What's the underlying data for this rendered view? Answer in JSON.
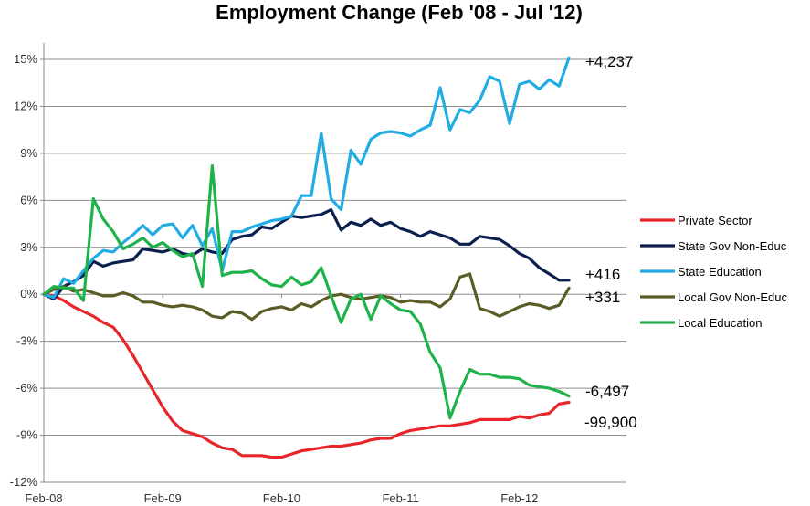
{
  "chart_data": {
    "type": "line",
    "title": "Employment Change (Feb '08 - Jul '12)",
    "xlabel": "",
    "ylabel": "",
    "y_ticks": [
      -12,
      -9,
      -6,
      -3,
      0,
      3,
      6,
      9,
      12,
      15
    ],
    "y_tick_labels": [
      "-12%",
      "-9%",
      "-6%",
      "-3%",
      "0%",
      "3%",
      "6%",
      "9%",
      "12%",
      "15%"
    ],
    "ylim": [
      -12,
      16
    ],
    "x_ticks": [
      "Feb-08",
      "Feb-09",
      "Feb-10",
      "Feb-11",
      "Feb-12"
    ],
    "x_tick_index": [
      0,
      12,
      24,
      36,
      48
    ],
    "n_points": 54,
    "grid": "horizontal",
    "legend": "right",
    "series": [
      {
        "name": "Private Sector",
        "color": "#e8262a",
        "end_label": "-99,900",
        "values": [
          0,
          -0.1,
          -0.4,
          -0.8,
          -1.1,
          -1.4,
          -1.8,
          -2.1,
          -2.9,
          -3.9,
          -5.0,
          -6.1,
          -7.2,
          -8.1,
          -8.7,
          -8.9,
          -9.1,
          -9.5,
          -9.8,
          -9.9,
          -10.3,
          -10.3,
          -10.3,
          -10.4,
          -10.4,
          -10.2,
          -10.0,
          -9.9,
          -9.8,
          -9.7,
          -9.7,
          -9.6,
          -9.5,
          -9.3,
          -9.2,
          -9.2,
          -8.9,
          -8.7,
          -8.6,
          -8.5,
          -8.4,
          -8.4,
          -8.3,
          -8.2,
          -8.0,
          -8.0,
          -8.0,
          -8.0,
          -7.8,
          -7.9,
          -7.7,
          -7.6,
          -7.0,
          -6.9
        ]
      },
      {
        "name": "State Gov Non-Educ",
        "color": "#0b1f4f",
        "end_label": "+416",
        "values": [
          0,
          -0.3,
          0.5,
          0.8,
          1.2,
          2.1,
          1.8,
          2.0,
          2.1,
          2.2,
          2.9,
          2.8,
          2.7,
          2.9,
          2.6,
          2.5,
          2.9,
          2.7,
          2.6,
          3.5,
          3.7,
          3.8,
          4.3,
          4.2,
          4.6,
          5.0,
          4.9,
          5.0,
          5.1,
          5.4,
          4.1,
          4.6,
          4.4,
          4.8,
          4.4,
          4.6,
          4.2,
          4.0,
          3.7,
          4.0,
          3.8,
          3.6,
          3.2,
          3.2,
          3.7,
          3.6,
          3.5,
          3.1,
          2.6,
          2.3,
          1.7,
          1.3,
          0.9,
          0.9
        ]
      },
      {
        "name": "State Education",
        "color": "#21ade4",
        "end_label": "+4,237",
        "values": [
          0,
          -0.2,
          1.0,
          0.7,
          1.5,
          2.3,
          2.8,
          2.7,
          3.3,
          3.8,
          4.4,
          3.8,
          4.4,
          4.5,
          3.6,
          4.4,
          3.1,
          4.2,
          1.5,
          4.0,
          4.0,
          4.3,
          4.5,
          4.7,
          4.8,
          5.0,
          6.3,
          6.3,
          10.3,
          6.1,
          5.4,
          9.2,
          8.3,
          9.9,
          10.3,
          10.4,
          10.3,
          10.1,
          10.5,
          10.8,
          13.2,
          10.5,
          11.8,
          11.6,
          12.4,
          13.9,
          13.6,
          10.9,
          13.4,
          13.6,
          13.1,
          13.7,
          13.3,
          15.1
        ]
      },
      {
        "name": "Local Gov Non-Educ",
        "color": "#5b5b25",
        "end_label": "+331",
        "values": [
          0,
          0.3,
          0.5,
          0.2,
          0.3,
          0.1,
          -0.1,
          -0.1,
          0.1,
          -0.1,
          -0.5,
          -0.5,
          -0.7,
          -0.8,
          -0.7,
          -0.8,
          -1.0,
          -1.4,
          -1.5,
          -1.1,
          -1.2,
          -1.6,
          -1.1,
          -0.9,
          -0.8,
          -1.0,
          -0.6,
          -0.8,
          -0.4,
          -0.1,
          0.0,
          -0.2,
          -0.3,
          -0.2,
          -0.1,
          -0.2,
          -0.5,
          -0.4,
          -0.5,
          -0.5,
          -0.8,
          -0.3,
          1.1,
          1.3,
          -0.9,
          -1.1,
          -1.4,
          -1.1,
          -0.8,
          -0.6,
          -0.7,
          -0.9,
          -0.7,
          0.4
        ]
      },
      {
        "name": "Local Education",
        "color": "#1eb24a",
        "end_label": "-6,497",
        "values": [
          0,
          0.5,
          0.4,
          0.4,
          -0.4,
          6.1,
          4.8,
          4.0,
          2.9,
          3.2,
          3.6,
          3.0,
          3.3,
          2.8,
          2.4,
          2.6,
          0.5,
          8.2,
          1.2,
          1.4,
          1.4,
          1.5,
          1.0,
          0.6,
          0.5,
          1.1,
          0.6,
          0.8,
          1.7,
          -0.1,
          -1.8,
          -0.3,
          0.0,
          -1.6,
          -0.1,
          -0.6,
          -1.0,
          -1.1,
          -1.9,
          -3.7,
          -4.7,
          -7.9,
          -6.2,
          -4.8,
          -5.1,
          -5.1,
          -5.3,
          -5.3,
          -5.4,
          -5.8,
          -5.9,
          -6.0,
          -6.2,
          -6.5
        ]
      }
    ]
  }
}
